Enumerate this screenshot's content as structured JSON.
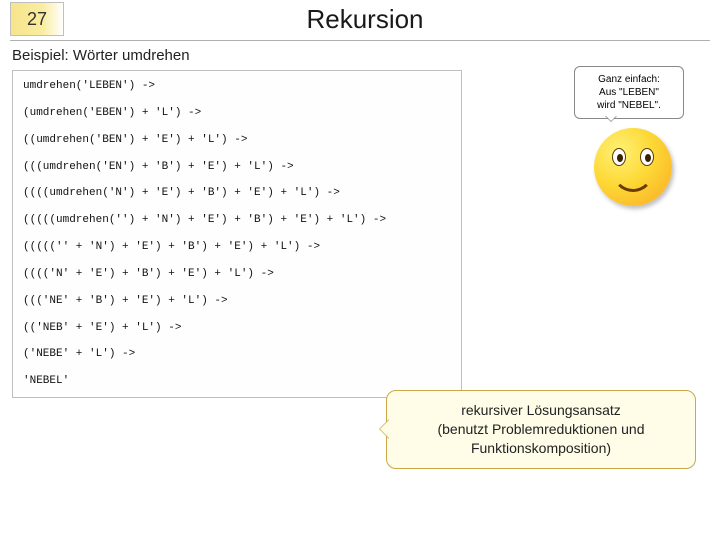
{
  "header": {
    "slide_number": "27",
    "title": "Rekursion"
  },
  "subtitle": "Beispiel: Wörter umdrehen",
  "code_lines": [
    "umdrehen('LEBEN') ->",
    "(umdrehen('EBEN') + 'L') ->",
    "((umdrehen('BEN') + 'E') + 'L') ->",
    "(((umdrehen('EN') + 'B') + 'E') + 'L') ->",
    "((((umdrehen('N') + 'E') + 'B') + 'E') + 'L') ->",
    "(((((umdrehen('') + 'N') + 'E') + 'B') + 'E') + 'L') ->",
    "((((('' + 'N') + 'E') + 'B') + 'E') + 'L') ->",
    "(((('N' + 'E') + 'B') + 'E') + 'L') ->",
    "((('NE' + 'B') + 'E') + 'L') ->",
    "(('NEB' + 'E') + 'L') ->",
    "('NEBE' + 'L') ->",
    "'NEBEL'"
  ],
  "speech": {
    "line1": "Ganz einfach:",
    "line2": "Aus \"LEBEN\"",
    "line3": "wird \"NEBEL\"."
  },
  "callout": {
    "line1": "rekursiver Lösungsansatz",
    "line2": "(benutzt Problemreduktionen und Funktionskomposition)"
  },
  "colors": {
    "slide_num_bg_start": "#f7e48b",
    "slide_num_bg_end": "#ffffff",
    "hr_color": "#b0b0b0",
    "code_border": "#bfbfbf",
    "callout_bg": "#fffde7",
    "callout_border": "#caa84a",
    "smiley_gradient_inner": "#fff176",
    "smiley_gradient_outer": "#f9a825"
  }
}
